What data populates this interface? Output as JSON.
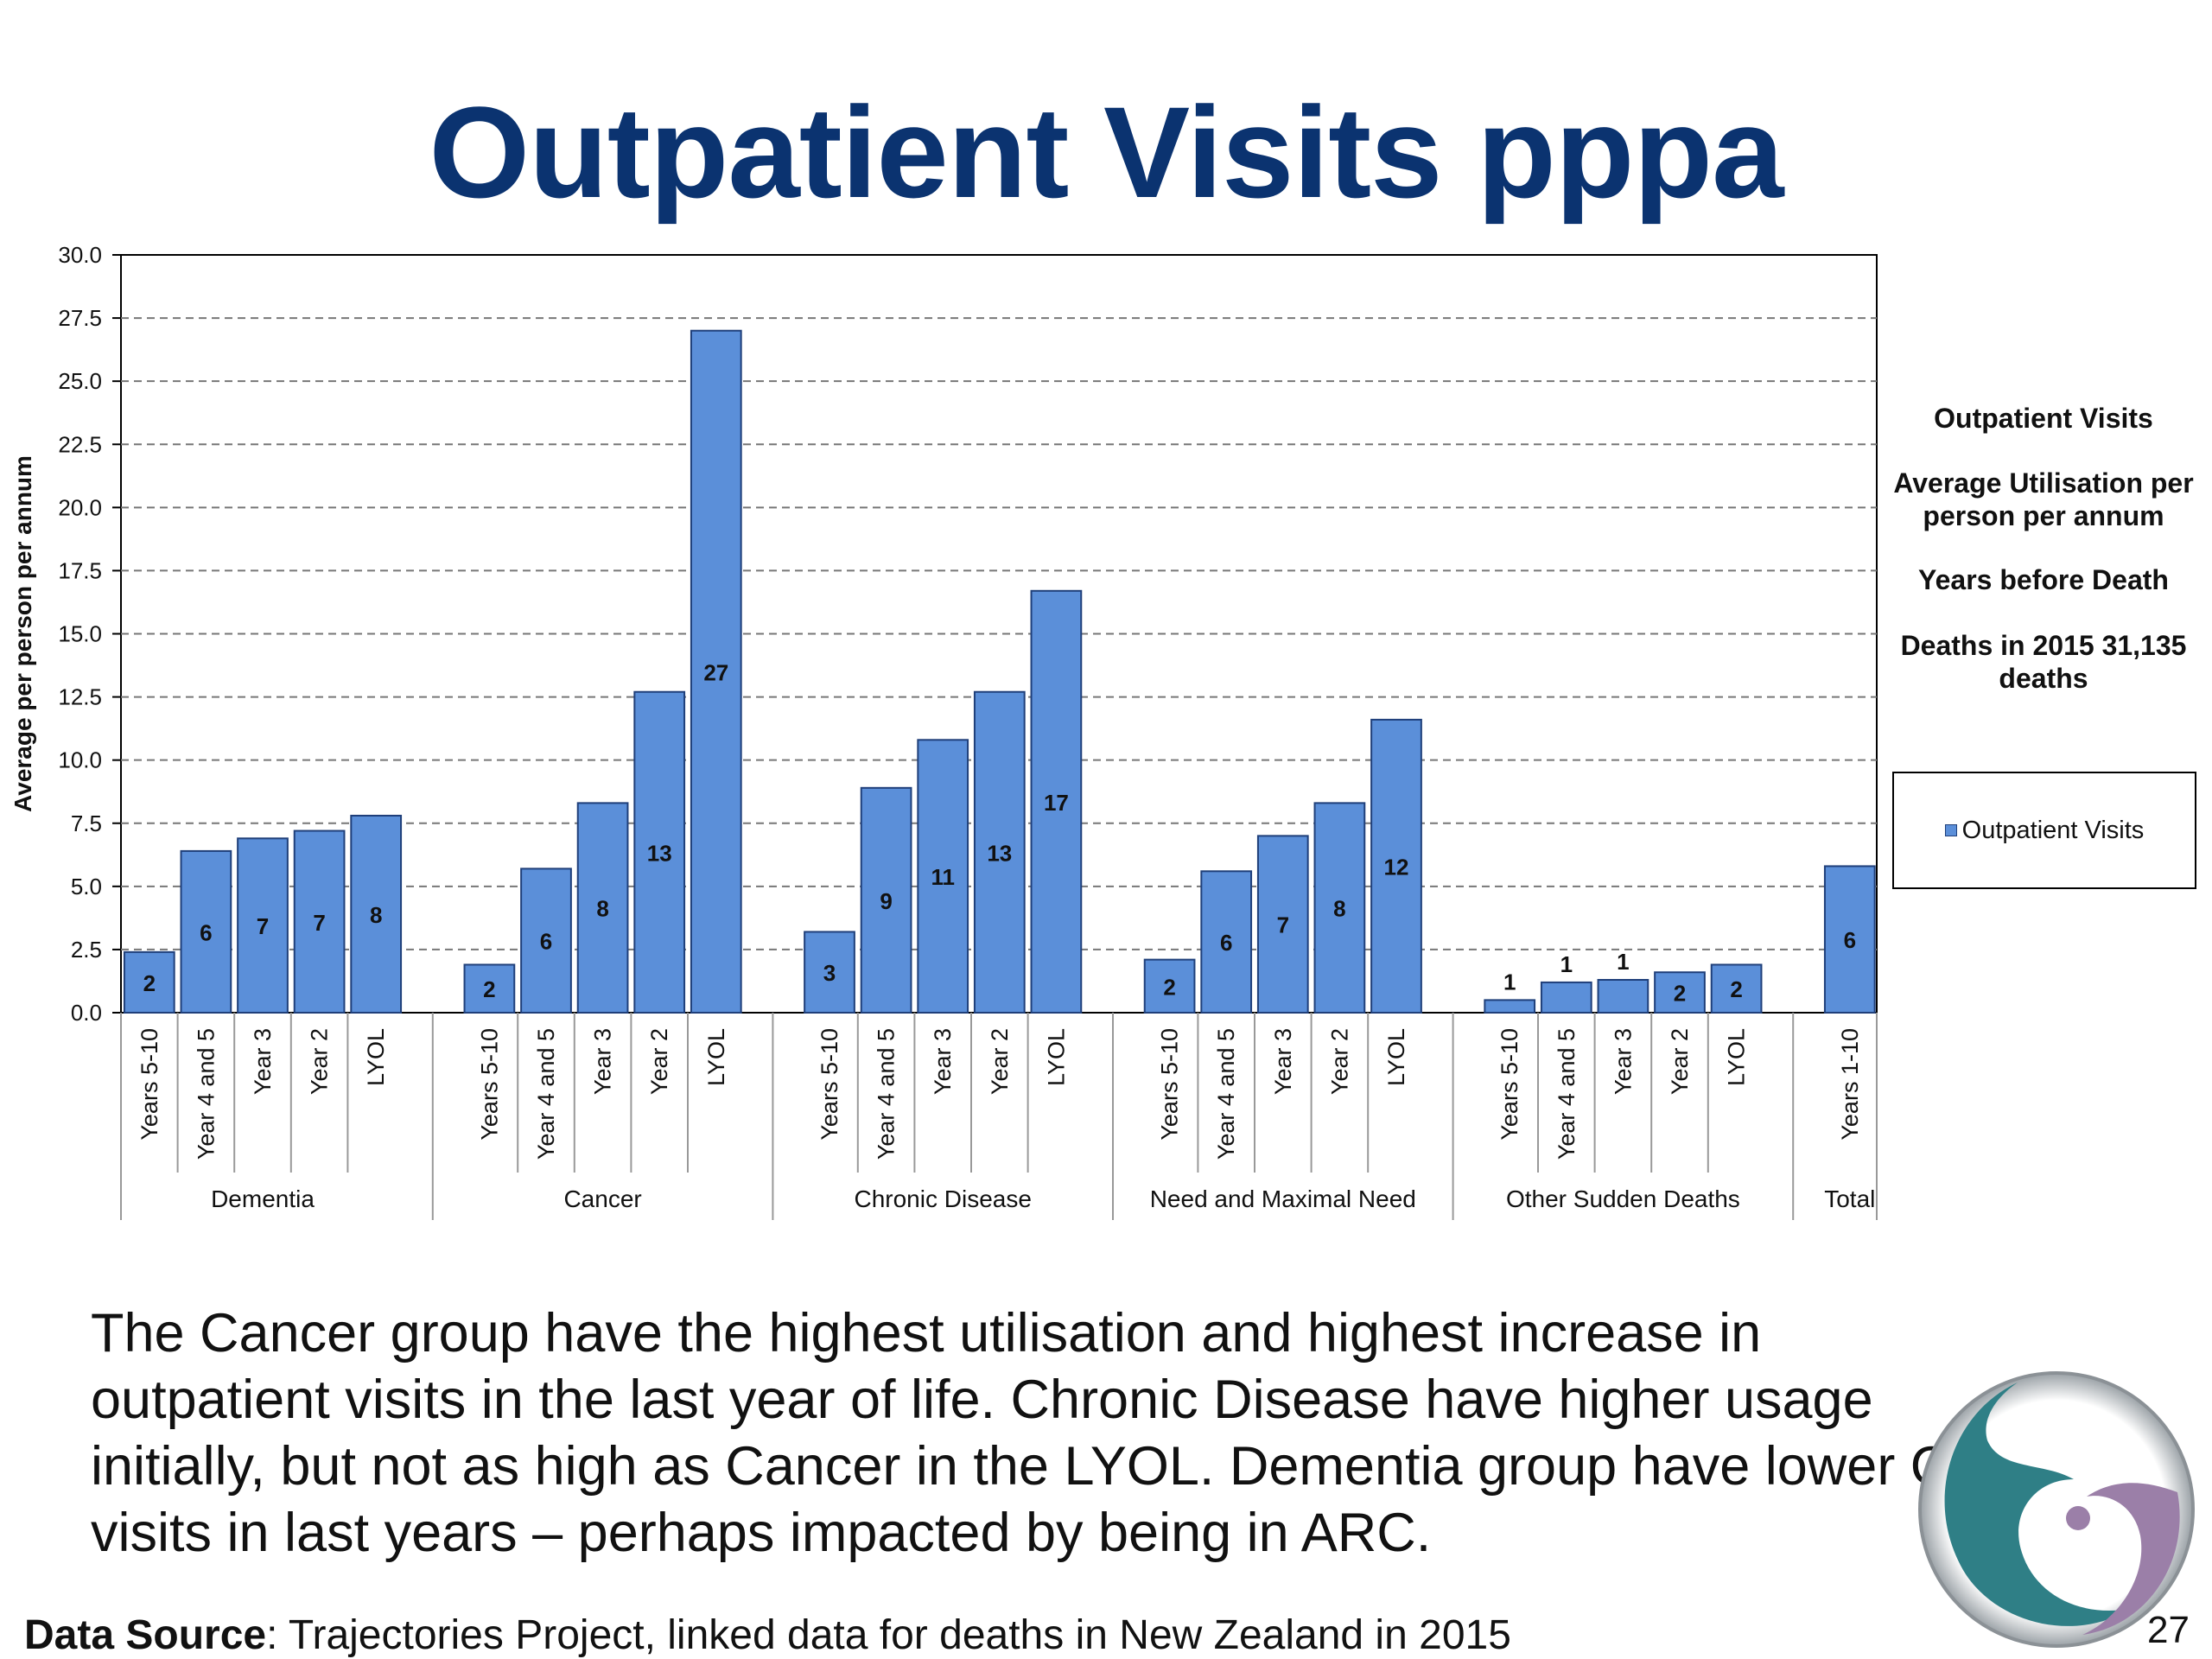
{
  "title": "Outpatient Visits pppa",
  "side_notes": [
    "Outpatient Visits",
    "Average Utilisation per person per annum",
    "Years before Death",
    "Deaths in 2015 31,135 deaths"
  ],
  "legend_label": "Outpatient Visits",
  "body_text": "The Cancer group have the highest utilisation and highest increase in outpatient visits in the last year of life. Chronic Disease have higher usage initially, but not as high as Cancer in the LYOL. Dementia group have lower OP visits in last years – perhaps impacted by being in ARC.",
  "source": {
    "label": "Data Source",
    "text": ": Trajectories Project, linked data for deaths in New Zealand in 2015"
  },
  "page_number": "27",
  "colors": {
    "bar": "#5b8fd9",
    "bar_stroke": "#1f3f7a",
    "title": "#0b3370"
  },
  "chart_data": {
    "type": "bar",
    "ylabel": "Average per person per annum",
    "ylim": [
      0,
      30
    ],
    "yticks": [
      "0.0",
      "2.5",
      "5.0",
      "7.5",
      "10.0",
      "12.5",
      "15.0",
      "17.5",
      "20.0",
      "22.5",
      "25.0",
      "27.5",
      "30.0"
    ],
    "grid": "horizontal dashed",
    "legend_position": "right",
    "series": [
      {
        "name": "Outpatient Visits"
      }
    ],
    "groups": [
      {
        "name": "Dementia",
        "bars": [
          {
            "category": "Years 5-10",
            "value": 2.4,
            "label": "2"
          },
          {
            "category": "Year 4 and 5",
            "value": 6.4,
            "label": "6"
          },
          {
            "category": "Year 3",
            "value": 6.9,
            "label": "7"
          },
          {
            "category": "Year 2",
            "value": 7.2,
            "label": "7"
          },
          {
            "category": "LYOL",
            "value": 7.8,
            "label": "8"
          }
        ]
      },
      {
        "name": "Cancer",
        "bars": [
          {
            "category": "Years 5-10",
            "value": 1.9,
            "label": "2"
          },
          {
            "category": "Year 4 and 5",
            "value": 5.7,
            "label": "6"
          },
          {
            "category": "Year 3",
            "value": 8.3,
            "label": "8"
          },
          {
            "category": "Year 2",
            "value": 12.7,
            "label": "13"
          },
          {
            "category": "LYOL",
            "value": 27.0,
            "label": "27"
          }
        ]
      },
      {
        "name": "Chronic Disease",
        "bars": [
          {
            "category": "Years 5-10",
            "value": 3.2,
            "label": "3"
          },
          {
            "category": "Year 4 and 5",
            "value": 8.9,
            "label": "9"
          },
          {
            "category": "Year 3",
            "value": 10.8,
            "label": "11"
          },
          {
            "category": "Year 2",
            "value": 12.7,
            "label": "13"
          },
          {
            "category": "LYOL",
            "value": 16.7,
            "label": "17"
          }
        ]
      },
      {
        "name": "Need and Maximal Need",
        "bars": [
          {
            "category": "Years 5-10",
            "value": 2.1,
            "label": "2"
          },
          {
            "category": "Year 4 and 5",
            "value": 5.6,
            "label": "6"
          },
          {
            "category": "Year 3",
            "value": 7.0,
            "label": "7"
          },
          {
            "category": "Year 2",
            "value": 8.3,
            "label": "8"
          },
          {
            "category": "LYOL",
            "value": 11.6,
            "label": "12"
          }
        ]
      },
      {
        "name": "Other Sudden Deaths",
        "bars": [
          {
            "category": "Years 5-10",
            "value": 0.5,
            "label": "1"
          },
          {
            "category": "Year 4 and 5",
            "value": 1.2,
            "label": "1"
          },
          {
            "category": "Year 3",
            "value": 1.3,
            "label": "1"
          },
          {
            "category": "Year 2",
            "value": 1.6,
            "label": "2"
          },
          {
            "category": "LYOL",
            "value": 1.9,
            "label": "2"
          }
        ]
      },
      {
        "name": "Total",
        "bars": [
          {
            "category": "Years 1-10",
            "value": 5.8,
            "label": "6"
          }
        ]
      }
    ]
  }
}
